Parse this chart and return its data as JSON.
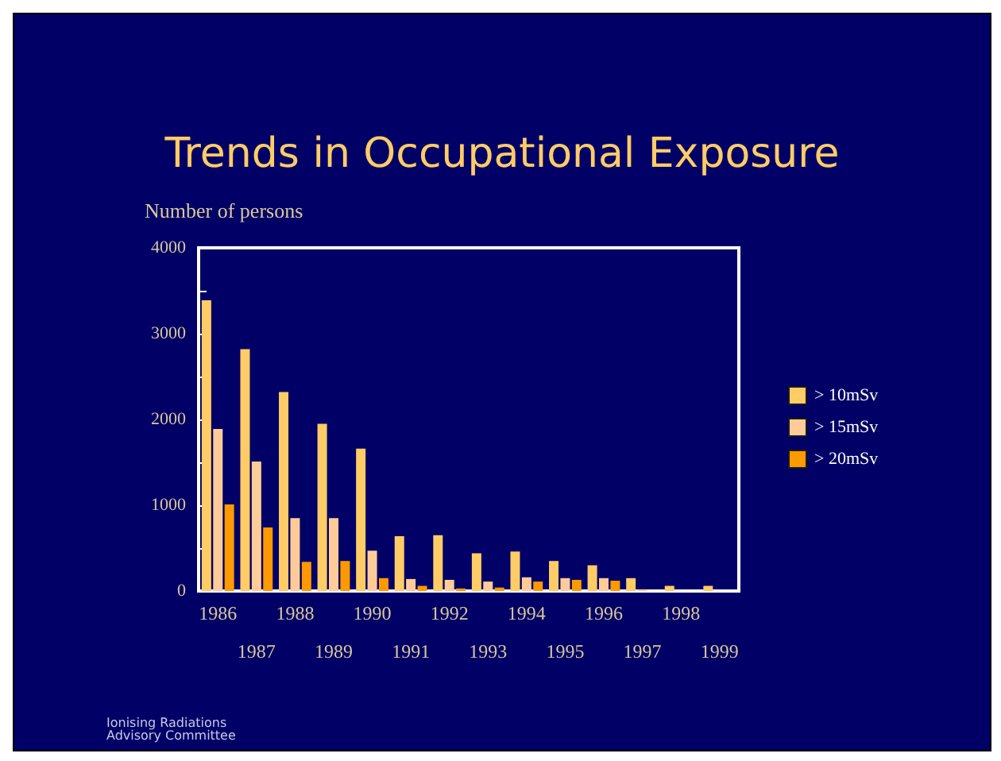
{
  "chart_data": {
    "type": "bar",
    "title": "Trends in Occupational Exposure",
    "ylabel": "Number of persons",
    "categories": [
      "1986",
      "1987",
      "1988",
      "1989",
      "1990",
      "1991",
      "1992",
      "1993",
      "1994",
      "1995",
      "1996",
      "1997",
      "1998",
      "1999"
    ],
    "series": [
      {
        "name": "> 10mSv",
        "color": "#ffcc66",
        "values": [
          3390,
          2820,
          2320,
          1950,
          1660,
          640,
          650,
          440,
          460,
          350,
          300,
          150,
          60,
          60
        ]
      },
      {
        "name": "> 15mSv",
        "color": "#ffcc99",
        "values": [
          1890,
          1510,
          850,
          850,
          470,
          140,
          130,
          110,
          160,
          150,
          150,
          20,
          0,
          0
        ]
      },
      {
        "name": "> 20mSv",
        "color": "#ff9900",
        "values": [
          1010,
          740,
          340,
          350,
          150,
          60,
          30,
          40,
          110,
          130,
          120,
          0,
          0,
          0
        ]
      }
    ],
    "ylim": [
      0,
      4000
    ],
    "yticks": [
      0,
      1000,
      2000,
      3000,
      4000
    ],
    "grid": false,
    "legend": "right",
    "annotations": [
      "Ionising Radiations Advisory Committee"
    ]
  }
}
